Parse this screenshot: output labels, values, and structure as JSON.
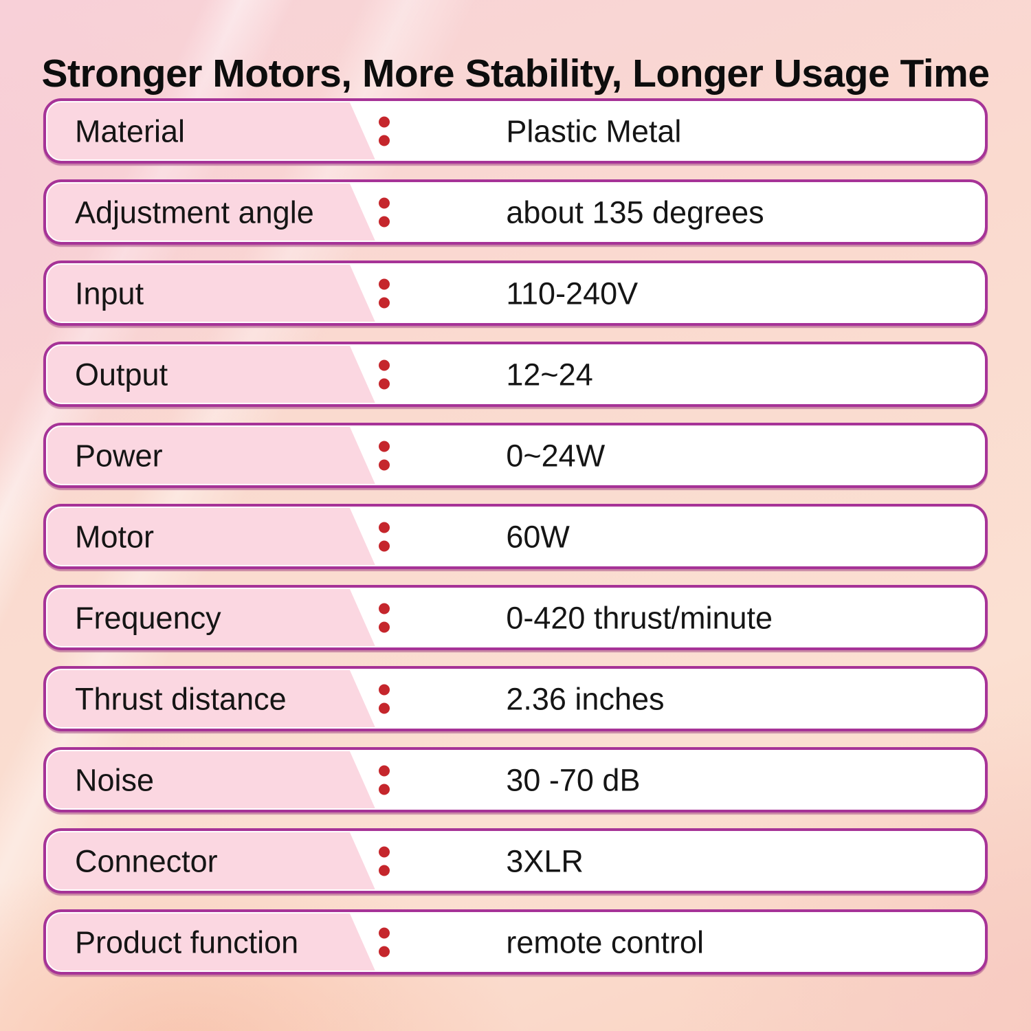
{
  "title": "Stronger Motors, More Stability, Longer Usage Time",
  "colors": {
    "row_border": "#a63397",
    "label_background": "#fbd7e1",
    "separator_dot": "#c5262c",
    "page_background": "#fadcce",
    "text": "#141414"
  },
  "rows": [
    {
      "label": "Material",
      "value": "Plastic Metal"
    },
    {
      "label": "Adjustment angle",
      "value": "about 135 degrees"
    },
    {
      "label": "Input",
      "value": "110-240V"
    },
    {
      "label": "Output",
      "value": "12~24"
    },
    {
      "label": "Power",
      "value": "0~24W"
    },
    {
      "label": "Motor",
      "value": "60W"
    },
    {
      "label": "Frequency",
      "value": "0-420 thrust/minute"
    },
    {
      "label": "Thrust distance",
      "value": "2.36 inches"
    },
    {
      "label": "Noise",
      "value": "30 -70 dB"
    },
    {
      "label": "Connector",
      "value": "3XLR"
    },
    {
      "label": "Product function",
      "value": "remote control"
    }
  ]
}
